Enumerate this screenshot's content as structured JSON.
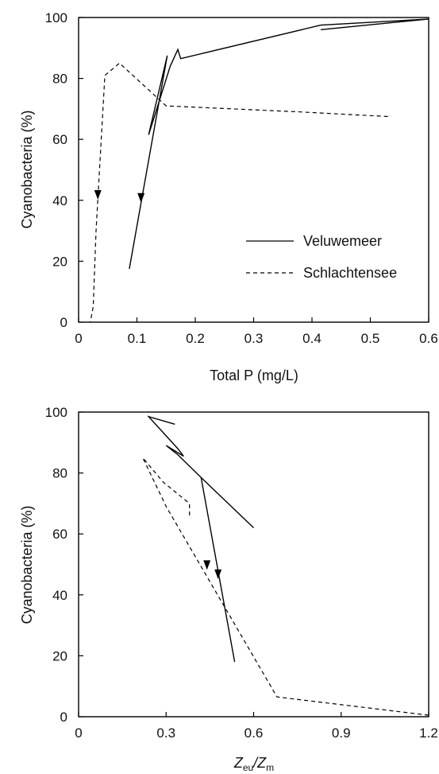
{
  "chart_data": [
    {
      "type": "line",
      "xlabel": "Total P (mg/L)",
      "ylabel": "Cyanobacteria (%)",
      "xlim": [
        0,
        0.6
      ],
      "ylim": [
        0,
        100
      ],
      "xticks": [
        0,
        0.1,
        0.2,
        0.3,
        0.4,
        0.5,
        0.6
      ],
      "xtick_labels": [
        "0",
        "0.1",
        "0.2",
        "0.3",
        "0.4",
        "0.5",
        "0.6"
      ],
      "yticks": [
        0,
        20,
        40,
        60,
        80,
        100
      ],
      "ytick_labels": [
        "0",
        "20",
        "40",
        "60",
        "80",
        "100"
      ],
      "legend_position": "lower-right",
      "series": [
        {
          "name": "Veluwemeer",
          "dash": "solid",
          "points": [
            [
              0.6,
              99.5
            ],
            [
              0.415,
              96.0
            ],
            [
              0.6,
              99.5
            ],
            [
              0.415,
              97.5
            ],
            [
              0.175,
              86.5
            ],
            [
              0.17,
              89.5
            ],
            [
              0.157,
              84.0
            ],
            [
              0.12,
              61.5
            ],
            [
              0.152,
              87.5
            ],
            [
              0.087,
              17.5
            ]
          ],
          "arrows": [
            [
              0.107,
              40.0
            ]
          ]
        },
        {
          "name": "Schlachtensee",
          "dash": "dashed",
          "points": [
            [
              0.53,
              67.5
            ],
            [
              0.38,
              69.0
            ],
            [
              0.15,
              71.0
            ],
            [
              0.07,
              85.0
            ],
            [
              0.045,
              81.0
            ],
            [
              0.03,
              30.0
            ],
            [
              0.025,
              5.0
            ],
            [
              0.02,
              0.0
            ]
          ],
          "arrows": [
            [
              0.033,
              41.0
            ]
          ]
        }
      ]
    },
    {
      "type": "line",
      "xlabel": "Z",
      "xlabel_sub1": "eu",
      "xlabel_sep": "/Z",
      "xlabel_sub2": "m",
      "ylabel": "Cyanobacteria (%)",
      "xlim": [
        0,
        1.2
      ],
      "ylim": [
        0,
        100
      ],
      "xticks": [
        0,
        0.3,
        0.6,
        0.9,
        1.2
      ],
      "xtick_labels": [
        "0",
        "0.3",
        "0.6",
        "0.9",
        "1.2"
      ],
      "yticks": [
        0,
        20,
        40,
        60,
        80,
        100
      ],
      "ytick_labels": [
        "0",
        "20",
        "40",
        "60",
        "80",
        "100"
      ],
      "series": [
        {
          "name": "Veluwemeer",
          "dash": "solid",
          "points": [
            [
              0.6,
              62.0
            ],
            [
              0.42,
              78.5
            ],
            [
              0.34,
              86.0
            ],
            [
              0.3,
              89.0
            ],
            [
              0.36,
              85.5
            ],
            [
              0.34,
              88.0
            ],
            [
              0.24,
              98.5
            ],
            [
              0.33,
              96.0
            ]
          ],
          "branch": [
            [
              0.42,
              78.5
            ],
            [
              0.535,
              18.0
            ]
          ],
          "arrows": [
            [
              0.478,
              46.0
            ]
          ]
        },
        {
          "name": "Schlachtensee",
          "dash": "dashed",
          "points": [
            [
              1.2,
              0.5
            ],
            [
              0.68,
              6.5
            ],
            [
              0.3,
              69.0
            ],
            [
              0.22,
              85.0
            ],
            [
              0.29,
              77.0
            ],
            [
              0.38,
              70.0
            ],
            [
              0.38,
              65.0
            ]
          ],
          "arrows": [
            [
              0.44,
              49.0
            ]
          ]
        }
      ]
    }
  ]
}
